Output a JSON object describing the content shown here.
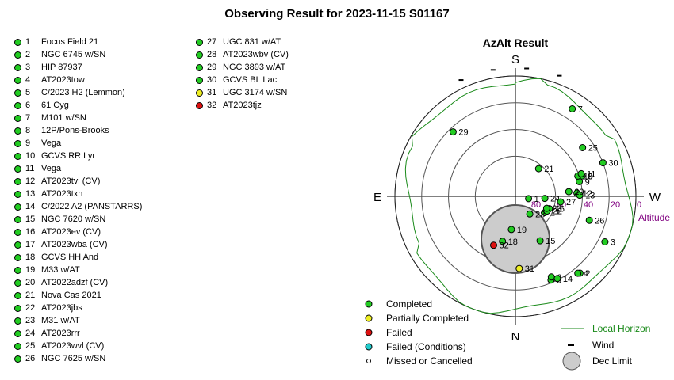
{
  "title": "Observing Result for 2023-11-15 S01167",
  "colors": {
    "Completed": "#22cc22",
    "Partially Completed": "#eeee22",
    "Failed": "#dd1111",
    "Failed (Conditions)": "#22cccc",
    "Missed or Cancelled": "#ffffff",
    "horizon": "#1a8a1a",
    "altitude_labels": "#800080"
  },
  "targets": [
    {
      "num": "1",
      "name": "Focus Field 21",
      "status": "Completed"
    },
    {
      "num": "2",
      "name": "NGC 6745 w/SN",
      "status": "Completed"
    },
    {
      "num": "3",
      "name": "HIP 87937",
      "status": "Completed"
    },
    {
      "num": "4",
      "name": "AT2023tow",
      "status": "Completed"
    },
    {
      "num": "5",
      "name": "C/2023 H2 (Lemmon)",
      "status": "Completed"
    },
    {
      "num": "6",
      "name": "61 Cyg",
      "status": "Completed"
    },
    {
      "num": "7",
      "name": "M101 w/SN",
      "status": "Completed"
    },
    {
      "num": "8",
      "name": "12P/Pons-Brooks",
      "status": "Completed"
    },
    {
      "num": "9",
      "name": "Vega",
      "status": "Completed"
    },
    {
      "num": "10",
      "name": "GCVS RR Lyr",
      "status": "Completed"
    },
    {
      "num": "11",
      "name": "Vega",
      "status": "Completed"
    },
    {
      "num": "12",
      "name": "AT2023tvi (CV)",
      "status": "Completed"
    },
    {
      "num": "13",
      "name": "AT2023txn",
      "status": "Completed"
    },
    {
      "num": "14",
      "name": "C/2022 A2 (PANSTARRS)",
      "status": "Completed"
    },
    {
      "num": "15",
      "name": "NGC 7620 w/SN",
      "status": "Completed"
    },
    {
      "num": "16",
      "name": "AT2023ev (CV)",
      "status": "Completed"
    },
    {
      "num": "17",
      "name": "AT2023wba (CV)",
      "status": "Completed"
    },
    {
      "num": "18",
      "name": "GCVS HH And",
      "status": "Completed"
    },
    {
      "num": "19",
      "name": "M33 w/AT",
      "status": "Completed"
    },
    {
      "num": "20",
      "name": "AT2022adzf (CV)",
      "status": "Completed"
    },
    {
      "num": "21",
      "name": "Nova Cas 2021",
      "status": "Completed"
    },
    {
      "num": "22",
      "name": "AT2023jbs",
      "status": "Completed"
    },
    {
      "num": "23",
      "name": "M31 w/AT",
      "status": "Completed"
    },
    {
      "num": "24",
      "name": "AT2023rrr",
      "status": "Completed"
    },
    {
      "num": "25",
      "name": "AT2023wvl (CV)",
      "status": "Completed"
    },
    {
      "num": "26",
      "name": "NGC 7625 w/SN",
      "status": "Completed"
    },
    {
      "num": "27",
      "name": "UGC 831 w/AT",
      "status": "Completed"
    },
    {
      "num": "28",
      "name": "AT2023wbv (CV)",
      "status": "Completed"
    },
    {
      "num": "29",
      "name": "NGC 3893 w/AT",
      "status": "Completed"
    },
    {
      "num": "30",
      "name": "GCVS BL Lac",
      "status": "Completed"
    },
    {
      "num": "31",
      "name": "UGC 3174 w/SN",
      "status": "Partially Completed"
    },
    {
      "num": "32",
      "name": "AT2023tjz",
      "status": "Failed"
    }
  ],
  "chart_data": {
    "type": "scatter",
    "title": "AzAlt Result",
    "projection": "polar azimuth / altitude, S at top, W at right",
    "directions": {
      "top": "S",
      "bottom": "N",
      "left": "E",
      "right": "W"
    },
    "altitude_ticks": [
      "0",
      "20",
      "40",
      "60",
      "80"
    ],
    "altitude_values": [
      0,
      20,
      40,
      60,
      80
    ],
    "altitude_axis_label": "Altitude",
    "points": [
      {
        "label": "1",
        "az": 260,
        "alt": 80
      },
      {
        "label": "2",
        "az": 220,
        "alt": 15
      },
      {
        "label": "3",
        "az": 243,
        "alt": 15
      },
      {
        "label": "4",
        "az": 219,
        "alt": 16
      },
      {
        "label": "5",
        "az": 203,
        "alt": 22
      },
      {
        "label": "6",
        "az": 204,
        "alt": 24
      },
      {
        "label": "7",
        "az": 327,
        "alt": 12
      },
      {
        "label": "8",
        "az": 287,
        "alt": 38
      },
      {
        "label": "9",
        "az": 283,
        "alt": 41
      },
      {
        "label": "10",
        "az": 288,
        "alt": 41
      },
      {
        "label": "11",
        "az": 289,
        "alt": 38
      },
      {
        "label": "12",
        "az": 273,
        "alt": 44
      },
      {
        "label": "13",
        "az": 271,
        "alt": 42
      },
      {
        "label": "14",
        "az": 207,
        "alt": 21
      },
      {
        "label": "15",
        "az": 209,
        "alt": 52
      },
      {
        "label": "16",
        "az": 250,
        "alt": 63
      },
      {
        "label": "17",
        "az": 241,
        "alt": 65
      },
      {
        "label": "18",
        "az": 164,
        "alt": 55
      },
      {
        "label": "19",
        "az": 173,
        "alt": 65
      },
      {
        "label": "20",
        "az": 275,
        "alt": 50
      },
      {
        "label": "21",
        "az": 320,
        "alt": 63
      },
      {
        "label": "22",
        "az": 245,
        "alt": 64
      },
      {
        "label": "23",
        "az": 249,
        "alt": 65
      },
      {
        "label": "24",
        "az": 266,
        "alt": 68
      },
      {
        "label": "25",
        "az": 306,
        "alt": 28
      },
      {
        "label": "26",
        "az": 252,
        "alt": 32
      },
      {
        "label": "27",
        "az": 263,
        "alt": 56
      },
      {
        "label": "28",
        "az": 219,
        "alt": 73
      },
      {
        "label": "29",
        "az": 44,
        "alt": 23
      },
      {
        "label": "30",
        "az": 291,
        "alt": 20
      },
      {
        "label": "31",
        "az": 183,
        "alt": 36
      },
      {
        "label": "32",
        "az": 156,
        "alt": 50
      }
    ],
    "legend": [
      {
        "label": "Completed",
        "marker": "Completed"
      },
      {
        "label": "Partially Completed",
        "marker": "Partially Completed"
      },
      {
        "label": "Failed",
        "marker": "Failed"
      },
      {
        "label": "Failed (Conditions)",
        "marker": "Failed (Conditions)"
      },
      {
        "label": "Missed or Cancelled",
        "marker": "Missed or Cancelled"
      }
    ],
    "legend2": [
      {
        "label": "Local Horizon",
        "marker": "line"
      },
      {
        "label": "Wind",
        "marker": "dash"
      },
      {
        "label": "Dec Limit",
        "marker": "circle"
      }
    ],
    "wind_azimuths": [
      340,
      355,
      10,
      25
    ]
  }
}
